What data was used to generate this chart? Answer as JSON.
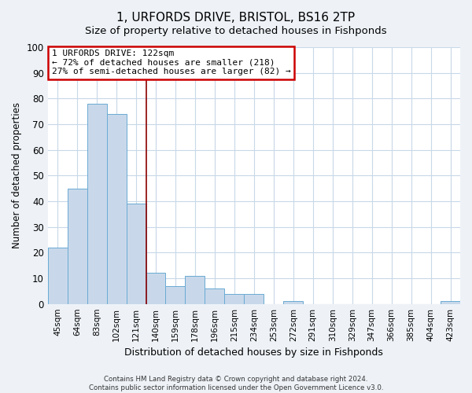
{
  "title": "1, URFORDS DRIVE, BRISTOL, BS16 2TP",
  "subtitle": "Size of property relative to detached houses in Fishponds",
  "xlabel": "Distribution of detached houses by size in Fishponds",
  "ylabel": "Number of detached properties",
  "bar_color": "#c8d8ea",
  "bar_edge_color": "#6aaad4",
  "categories": [
    "45sqm",
    "64sqm",
    "83sqm",
    "102sqm",
    "121sqm",
    "140sqm",
    "159sqm",
    "178sqm",
    "196sqm",
    "215sqm",
    "234sqm",
    "253sqm",
    "272sqm",
    "291sqm",
    "310sqm",
    "329sqm",
    "347sqm",
    "366sqm",
    "385sqm",
    "404sqm",
    "423sqm"
  ],
  "values": [
    22,
    45,
    78,
    74,
    39,
    12,
    7,
    11,
    6,
    4,
    4,
    0,
    1,
    0,
    0,
    0,
    0,
    0,
    0,
    0,
    1
  ],
  "ylim": [
    0,
    100
  ],
  "yticks": [
    0,
    10,
    20,
    30,
    40,
    50,
    60,
    70,
    80,
    90,
    100
  ],
  "property_line_x": 4.5,
  "annotation_title": "1 URFORDS DRIVE: 122sqm",
  "annotation_line1": "← 72% of detached houses are smaller (218)",
  "annotation_line2": "27% of semi-detached houses are larger (82) →",
  "annotation_box_color": "#ffffff",
  "annotation_box_edge": "#cc0000",
  "property_line_color": "#8b0000",
  "footer1": "Contains HM Land Registry data © Crown copyright and database right 2024.",
  "footer2": "Contains public sector information licensed under the Open Government Licence v3.0.",
  "background_color": "#eef2f7",
  "plot_background": "#ffffff",
  "grid_color": "#c8d8e8"
}
